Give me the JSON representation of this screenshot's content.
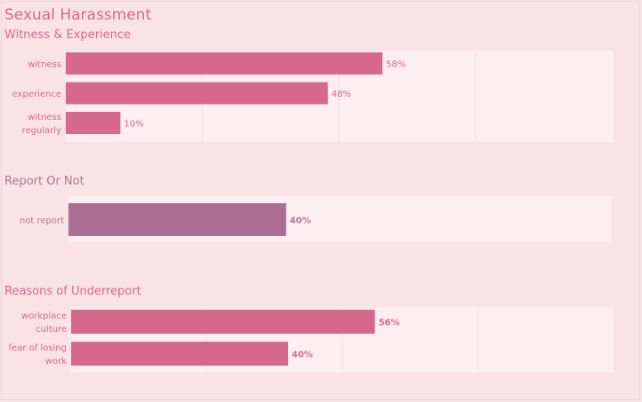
{
  "title": "Sexual Harassment",
  "colors": {
    "page_background": "#f9e3e7",
    "panel_background": "#fdeef1",
    "gridline": "#f8dfe4",
    "pink_bar": "#d6688d",
    "mauve_bar": "#ad6e94",
    "pink_text": "#d9668d",
    "mauve_text": "#b07693"
  },
  "chart_data": [
    {
      "type": "bar",
      "orientation": "horizontal",
      "title": "Witness & Experience",
      "categories": [
        [
          "witness"
        ],
        [
          "experience"
        ],
        [
          "witness",
          "regularly"
        ]
      ],
      "values": [
        58,
        48,
        10
      ],
      "value_labels": [
        "58%",
        "48%",
        "10%"
      ],
      "xlim": [
        0,
        100
      ],
      "grid": true
    },
    {
      "type": "bar",
      "orientation": "horizontal",
      "title": "Report Or Not",
      "categories": [
        [
          "not report"
        ]
      ],
      "values": [
        40
      ],
      "value_labels": [
        "40%"
      ],
      "xlim": [
        0,
        100
      ],
      "grid": false
    },
    {
      "type": "bar",
      "orientation": "horizontal",
      "title": "Reasons of Underreport",
      "categories": [
        [
          "workplace",
          "culture"
        ],
        [
          "fear of losing",
          "work"
        ]
      ],
      "values": [
        56,
        40
      ],
      "value_labels": [
        "56%",
        "40%"
      ],
      "xlim": [
        0,
        100
      ],
      "grid": true
    }
  ]
}
